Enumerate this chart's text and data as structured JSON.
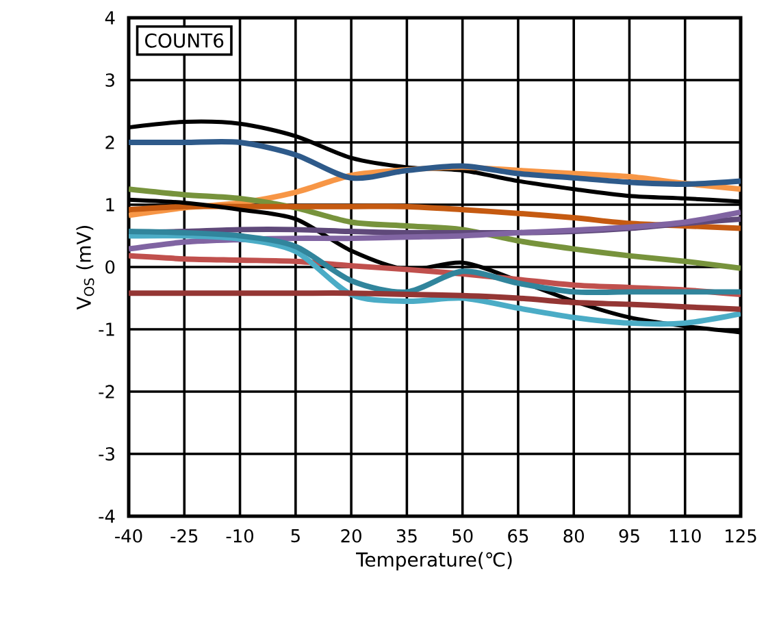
{
  "chart_data": {
    "type": "line",
    "xlabel": "Temperature(℃)",
    "ylabel": "V$_{OS}$ (mV)",
    "annotations": [
      "COUNT6"
    ],
    "x": [
      -40,
      -25,
      -10,
      5,
      20,
      35,
      50,
      65,
      80,
      95,
      110,
      125
    ],
    "xlim": [
      -40,
      125
    ],
    "xticks": [
      -40,
      -25,
      -10,
      5,
      20,
      35,
      50,
      65,
      80,
      95,
      110,
      125
    ],
    "ylim": [
      -4,
      4
    ],
    "yticks": [
      -4,
      -3,
      -2,
      -1,
      0,
      1,
      2,
      3,
      4
    ],
    "grid": true,
    "marker": "none",
    "line_style": "solid",
    "series": [
      {
        "color": "#000000",
        "values": [
          2.24,
          2.33,
          2.3,
          2.1,
          1.75,
          1.6,
          1.55,
          1.38,
          1.25,
          1.14,
          1.1,
          1.05
        ]
      },
      {
        "color": "#f79646",
        "values": [
          0.83,
          0.95,
          1.03,
          1.2,
          1.47,
          1.56,
          1.6,
          1.55,
          1.5,
          1.45,
          1.34,
          1.25
        ]
      },
      {
        "color": "#2e5a8a",
        "values": [
          2.0,
          2.0,
          2.0,
          1.8,
          1.43,
          1.55,
          1.62,
          1.5,
          1.43,
          1.36,
          1.33,
          1.38
        ]
      },
      {
        "color": "#77933c",
        "values": [
          1.25,
          1.16,
          1.1,
          0.95,
          0.72,
          0.66,
          0.6,
          0.42,
          0.29,
          0.18,
          0.09,
          -0.02
        ]
      },
      {
        "color": "#c55a11",
        "values": [
          0.92,
          0.97,
          0.97,
          0.97,
          0.97,
          0.97,
          0.92,
          0.86,
          0.79,
          0.7,
          0.66,
          0.62
        ]
      },
      {
        "color": "#000000",
        "values": [
          1.08,
          1.03,
          0.92,
          0.77,
          0.26,
          -0.04,
          0.07,
          -0.22,
          -0.55,
          -0.81,
          -0.95,
          -1.05
        ]
      },
      {
        "color": "#5f497a",
        "values": [
          0.55,
          0.57,
          0.6,
          0.6,
          0.57,
          0.55,
          0.55,
          0.55,
          0.57,
          0.62,
          0.7,
          0.77
        ]
      },
      {
        "color": "#8064a2",
        "values": [
          0.29,
          0.4,
          0.44,
          0.46,
          0.46,
          0.48,
          0.5,
          0.55,
          0.59,
          0.64,
          0.72,
          0.88
        ]
      },
      {
        "color": "#c0504d",
        "values": [
          0.18,
          0.13,
          0.11,
          0.09,
          0.02,
          -0.04,
          -0.11,
          -0.2,
          -0.29,
          -0.33,
          -0.37,
          -0.44
        ]
      },
      {
        "color": "#4bacc6",
        "values": [
          0.5,
          0.5,
          0.45,
          0.25,
          -0.44,
          -0.55,
          -0.5,
          -0.66,
          -0.81,
          -0.9,
          -0.9,
          -0.75
        ]
      },
      {
        "color": "#31859c",
        "values": [
          0.57,
          0.55,
          0.5,
          0.33,
          -0.22,
          -0.4,
          -0.07,
          -0.26,
          -0.4,
          -0.4,
          -0.4,
          -0.4
        ]
      },
      {
        "color": "#943634",
        "values": [
          -0.42,
          -0.42,
          -0.42,
          -0.42,
          -0.42,
          -0.44,
          -0.46,
          -0.5,
          -0.57,
          -0.6,
          -0.64,
          -0.68
        ]
      }
    ]
  }
}
